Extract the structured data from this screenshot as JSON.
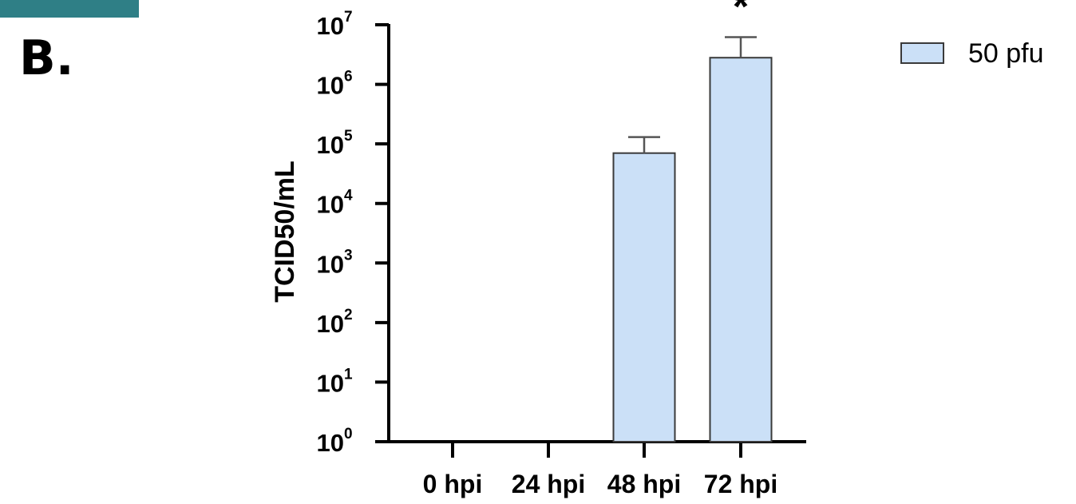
{
  "panel_label": "B.",
  "title_fragment": "",
  "colors": {
    "bar_fill": "#cbe0f7",
    "bar_stroke": "#3a3a3a",
    "corner_bar": "#2f7f86"
  },
  "chart_data": {
    "type": "bar",
    "log_scale": true,
    "ylabel": "TCID50/mL",
    "xlabel": "",
    "ylim": [
      1,
      10000000
    ],
    "y_ticks": [
      {
        "base": "10",
        "exp": "0",
        "value": 1
      },
      {
        "base": "10",
        "exp": "1",
        "value": 10
      },
      {
        "base": "10",
        "exp": "2",
        "value": 100
      },
      {
        "base": "10",
        "exp": "3",
        "value": 1000
      },
      {
        "base": "10",
        "exp": "4",
        "value": 10000
      },
      {
        "base": "10",
        "exp": "5",
        "value": 100000
      },
      {
        "base": "10",
        "exp": "6",
        "value": 1000000
      },
      {
        "base": "10",
        "exp": "7",
        "value": 10000000
      }
    ],
    "categories": [
      "0 hpi",
      "24 hpi",
      "48 hpi",
      "72 hpi"
    ],
    "series": [
      {
        "name": "50 pfu",
        "values": [
          null,
          null,
          70000,
          2800000
        ],
        "error_upper": [
          null,
          null,
          130000,
          6200000
        ]
      }
    ],
    "annotations": [
      {
        "category": "72 hpi",
        "text": "*"
      }
    ],
    "legend_position": "top-right",
    "grid": false
  }
}
